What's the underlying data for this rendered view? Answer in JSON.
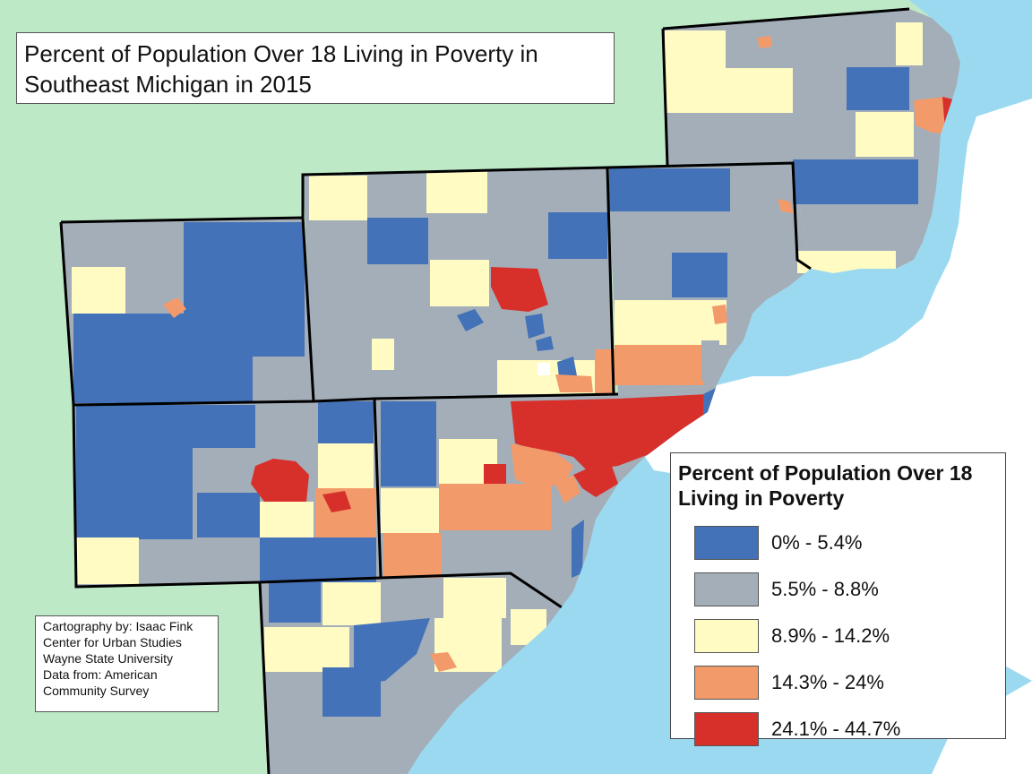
{
  "title": {
    "line1": "Percent of Population Over 18 Living in Poverty in",
    "line2": "Southeast Michigan in 2015"
  },
  "credits": {
    "line1": "Cartography by: Isaac Fink",
    "line2": "Center for Urban Studies",
    "line3": "Wayne State University",
    "line4": "Data from: American",
    "line5": "Community Survey"
  },
  "legend": {
    "title_line1": "Percent of Population Over 18",
    "title_line2": "Living in Poverty",
    "items": [
      {
        "label": "0% - 5.4%",
        "color": "#4472b8"
      },
      {
        "label": "5.5% - 8.8%",
        "color": "#a3aeb9"
      },
      {
        "label": "8.9% - 14.2%",
        "color": "#fffbc2"
      },
      {
        "label": "14.3% - 24%",
        "color": "#f39a6a"
      },
      {
        "label": "24.1% - 44.7%",
        "color": "#d7302b"
      }
    ]
  },
  "colors": {
    "land_outside": "#bde9c6",
    "water": "#9bd9f1",
    "border": "#000000"
  }
}
